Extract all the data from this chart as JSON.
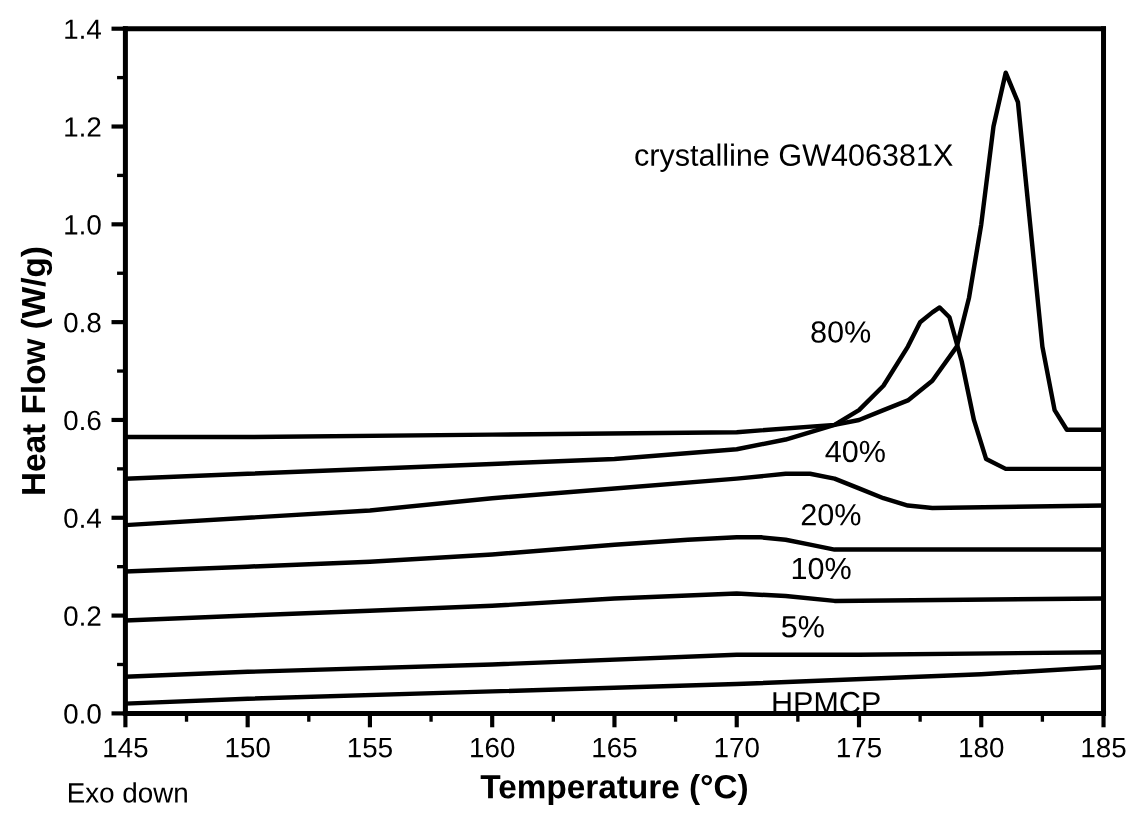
{
  "chart_data": {
    "type": "line",
    "xlabel": "Temperature (°C)",
    "ylabel": "Heat Flow (W/g)",
    "xlim": [
      145,
      185
    ],
    "xticks": [
      145,
      150,
      155,
      160,
      165,
      170,
      175,
      180,
      185
    ],
    "ylim": [
      0,
      1.4
    ],
    "yticks": [
      {
        "value": 0,
        "label": "0.0"
      },
      0.2,
      0.4,
      0.6,
      0.8,
      {
        "value": 1,
        "label": "1.0"
      },
      1.2,
      1.4
    ],
    "grid": false,
    "legend": false,
    "marker": "none",
    "line_style": "solid",
    "annotations": [
      "Exo down"
    ],
    "series": [
      {
        "name": "crystalline GW406381X",
        "color": "#000000",
        "x": [
          145,
          150,
          160,
          170,
          174,
          175,
          176,
          177,
          178,
          179,
          179.5,
          180,
          180.5,
          181,
          181.5,
          182,
          182.5,
          183,
          183.5,
          185
        ],
        "values": [
          0.565,
          0.565,
          0.57,
          0.575,
          0.59,
          0.6,
          0.62,
          0.64,
          0.68,
          0.75,
          0.85,
          1.0,
          1.2,
          1.31,
          1.25,
          1.0,
          0.75,
          0.62,
          0.58,
          0.58
        ]
      },
      {
        "name": "80%",
        "color": "#000000",
        "x": [
          145,
          150,
          160,
          165,
          170,
          172,
          174,
          175,
          176,
          177,
          177.5,
          178,
          178.3,
          178.7,
          179.2,
          179.7,
          180.2,
          181,
          185
        ],
        "values": [
          0.48,
          0.49,
          0.51,
          0.52,
          0.54,
          0.56,
          0.59,
          0.62,
          0.67,
          0.75,
          0.8,
          0.82,
          0.83,
          0.81,
          0.72,
          0.6,
          0.52,
          0.5,
          0.5
        ]
      },
      {
        "name": "40%",
        "color": "#000000",
        "x": [
          145,
          150,
          155,
          160,
          165,
          170,
          172,
          173,
          174,
          175,
          176,
          177,
          178,
          185
        ],
        "values": [
          0.385,
          0.4,
          0.415,
          0.44,
          0.46,
          0.48,
          0.49,
          0.49,
          0.48,
          0.46,
          0.44,
          0.425,
          0.42,
          0.425
        ]
      },
      {
        "name": "20%",
        "color": "#000000",
        "x": [
          145,
          150,
          155,
          160,
          165,
          168,
          170,
          171,
          172,
          173,
          174,
          175,
          185
        ],
        "values": [
          0.29,
          0.3,
          0.31,
          0.325,
          0.345,
          0.355,
          0.36,
          0.36,
          0.355,
          0.345,
          0.335,
          0.335,
          0.335
        ]
      },
      {
        "name": "10%",
        "color": "#000000",
        "x": [
          145,
          150,
          155,
          160,
          165,
          170,
          172,
          174,
          185
        ],
        "values": [
          0.19,
          0.2,
          0.21,
          0.22,
          0.235,
          0.245,
          0.24,
          0.23,
          0.235
        ]
      },
      {
        "name": "5%",
        "color": "#000000",
        "x": [
          145,
          150,
          160,
          170,
          175,
          185
        ],
        "values": [
          0.075,
          0.085,
          0.1,
          0.12,
          0.12,
          0.125
        ]
      },
      {
        "name": "HPMCP",
        "color": "#000000",
        "x": [
          145,
          150,
          160,
          170,
          180,
          185
        ],
        "values": [
          0.02,
          0.03,
          0.045,
          0.06,
          0.08,
          0.095
        ]
      }
    ]
  }
}
